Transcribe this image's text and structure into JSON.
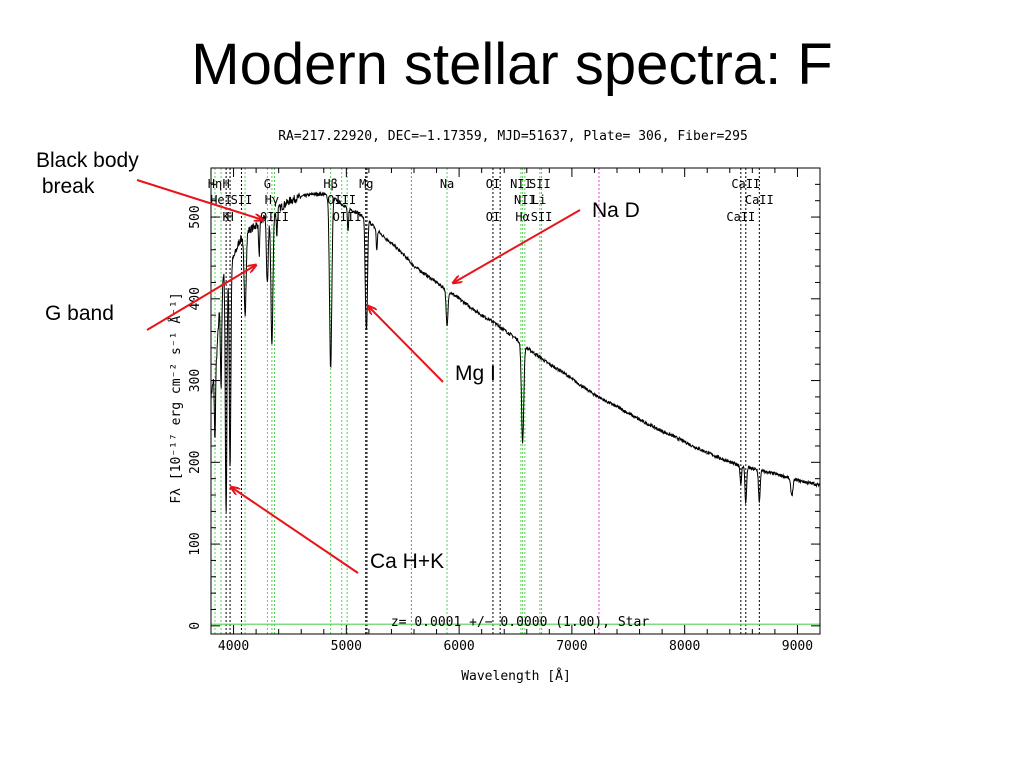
{
  "slide": {
    "title": "Modern stellar spectra: F"
  },
  "annotations": [
    {
      "label": "Black body\n break",
      "color": "#e8141b"
    },
    {
      "label": "G band",
      "color": "#e8141b"
    },
    {
      "label": "Na D",
      "color": "#e8141b"
    },
    {
      "label": "Mg I",
      "color": "#e8141b"
    },
    {
      "label": "Ca H+K",
      "color": "#e8141b"
    }
  ],
  "chart_data": {
    "type": "line",
    "title": "RA=217.22920, DEC=−1.17359, MJD=51637, Plate= 306, Fiber=295",
    "footer_text": "z= 0.0001 +/− 0.0000 (1.00), Star",
    "xlabel": "Wavelength [Å]",
    "ylabel": "Fλ [10⁻¹⁷ erg cm⁻² s⁻¹ Å⁻¹]",
    "xlim": [
      3800,
      9200
    ],
    "ylim": [
      -10,
      560
    ],
    "xticks": [
      4000,
      5000,
      6000,
      7000,
      8000,
      9000
    ],
    "yticks": [
      0,
      100,
      200,
      300,
      400,
      500
    ],
    "spectrum_color": "#000000",
    "continuum": [
      [
        3800,
        280
      ],
      [
        3850,
        330
      ],
      [
        3880,
        400
      ],
      [
        3910,
        430
      ],
      [
        3950,
        440
      ],
      [
        4000,
        450
      ],
      [
        4050,
        470
      ],
      [
        4100,
        480
      ],
      [
        4150,
        485
      ],
      [
        4200,
        490
      ],
      [
        4250,
        495
      ],
      [
        4300,
        505
      ],
      [
        4350,
        505
      ],
      [
        4400,
        510
      ],
      [
        4450,
        515
      ],
      [
        4500,
        520
      ],
      [
        4600,
        525
      ],
      [
        4700,
        528
      ],
      [
        4800,
        528
      ],
      [
        4900,
        522
      ],
      [
        5000,
        512
      ],
      [
        5100,
        505
      ],
      [
        5200,
        495
      ],
      [
        5300,
        480
      ],
      [
        5400,
        468
      ],
      [
        5500,
        455
      ],
      [
        5600,
        440
      ],
      [
        5700,
        430
      ],
      [
        5800,
        420
      ],
      [
        5900,
        410
      ],
      [
        6000,
        400
      ],
      [
        6100,
        390
      ],
      [
        6200,
        380
      ],
      [
        6300,
        372
      ],
      [
        6400,
        362
      ],
      [
        6500,
        352
      ],
      [
        6600,
        340
      ],
      [
        6700,
        330
      ],
      [
        6800,
        320
      ],
      [
        6900,
        312
      ],
      [
        7000,
        302
      ],
      [
        7100,
        292
      ],
      [
        7200,
        283
      ],
      [
        7300,
        275
      ],
      [
        7400,
        268
      ],
      [
        7500,
        260
      ],
      [
        7600,
        252
      ],
      [
        7700,
        245
      ],
      [
        7800,
        238
      ],
      [
        7900,
        232
      ],
      [
        8000,
        225
      ],
      [
        8100,
        218
      ],
      [
        8200,
        212
      ],
      [
        8300,
        206
      ],
      [
        8400,
        200
      ],
      [
        8500,
        196
      ],
      [
        8600,
        192
      ],
      [
        8700,
        189
      ],
      [
        8800,
        186
      ],
      [
        8900,
        182
      ],
      [
        9000,
        178
      ],
      [
        9100,
        175
      ],
      [
        9200,
        172
      ]
    ],
    "absorption_lines": [
      {
        "x": 3835,
        "depth": 90,
        "width": 5
      },
      {
        "x": 3889,
        "depth": 120,
        "width": 6
      },
      {
        "x": 3934,
        "depth": 300,
        "width": 7
      },
      {
        "x": 3969,
        "depth": 250,
        "width": 7
      },
      {
        "x": 4102,
        "depth": 100,
        "width": 9
      },
      {
        "x": 4227,
        "depth": 40,
        "width": 5
      },
      {
        "x": 4300,
        "depth": 90,
        "width": 8
      },
      {
        "x": 4340,
        "depth": 160,
        "width": 9
      },
      {
        "x": 4384,
        "depth": 30,
        "width": 5
      },
      {
        "x": 4861,
        "depth": 210,
        "width": 10
      },
      {
        "x": 5015,
        "depth": 30,
        "width": 5
      },
      {
        "x": 5172,
        "depth": 90,
        "width": 7
      },
      {
        "x": 5183,
        "depth": 95,
        "width": 7
      },
      {
        "x": 5270,
        "depth": 25,
        "width": 5
      },
      {
        "x": 5893,
        "depth": 45,
        "width": 8
      },
      {
        "x": 6563,
        "depth": 120,
        "width": 10
      },
      {
        "x": 8498,
        "depth": 25,
        "width": 6
      },
      {
        "x": 8542,
        "depth": 45,
        "width": 7
      },
      {
        "x": 8662,
        "depth": 40,
        "width": 7
      },
      {
        "x": 8950,
        "depth": 20,
        "width": 10
      }
    ],
    "reference_lines": [
      {
        "x": 3835,
        "color": "#55d155"
      },
      {
        "x": 3889,
        "color": "#55d155"
      },
      {
        "x": 3934,
        "color": "#000000"
      },
      {
        "x": 3969,
        "color": "#000000"
      },
      {
        "x": 4070,
        "color": "#000000"
      },
      {
        "x": 4102,
        "color": "#55d155"
      },
      {
        "x": 4300,
        "color": "#55d155"
      },
      {
        "x": 4340,
        "color": "#55d155"
      },
      {
        "x": 4363,
        "color": "#55d155"
      },
      {
        "x": 4861,
        "color": "#55d155"
      },
      {
        "x": 4959,
        "color": "#55d155"
      },
      {
        "x": 5007,
        "color": "#55d155"
      },
      {
        "x": 5172,
        "color": "#000000"
      },
      {
        "x": 5183,
        "color": "#000000"
      },
      {
        "x": 5577,
        "color": "#e040e0"
      },
      {
        "x": 5893,
        "color": "#55d155"
      },
      {
        "x": 6300,
        "color": "#000000"
      },
      {
        "x": 6364,
        "color": "#000000"
      },
      {
        "x": 6548,
        "color": "#55d155"
      },
      {
        "x": 6563,
        "color": "#55d155"
      },
      {
        "x": 6583,
        "color": "#55d155"
      },
      {
        "x": 6716,
        "color": "#55d155"
      },
      {
        "x": 6731,
        "color": "#55d155"
      },
      {
        "x": 7240,
        "color": "#e040e0"
      },
      {
        "x": 8498,
        "color": "#000000"
      },
      {
        "x": 8542,
        "color": "#000000"
      },
      {
        "x": 8662,
        "color": "#000000"
      }
    ],
    "line_labels": [
      {
        "text": "Hη",
        "x": 3835,
        "row": 0
      },
      {
        "text": "H",
        "x": 3934,
        "row": 0
      },
      {
        "text": "HeI",
        "x": 3889,
        "row": 1
      },
      {
        "text": "SII",
        "x": 4070,
        "row": 1
      },
      {
        "text": "K",
        "x": 3934,
        "row": 2
      },
      {
        "text": "H",
        "x": 3969,
        "row": 2
      },
      {
        "text": "G",
        "x": 4300,
        "row": 0
      },
      {
        "text": "Hγ",
        "x": 4340,
        "row": 1
      },
      {
        "text": "OIII",
        "x": 4363,
        "row": 2
      },
      {
        "text": "Hβ",
        "x": 4861,
        "row": 0
      },
      {
        "text": "OIII",
        "x": 4959,
        "row": 1
      },
      {
        "text": "OIII",
        "x": 5007,
        "row": 2
      },
      {
        "text": "Mg",
        "x": 5177,
        "row": 0
      },
      {
        "text": "Na",
        "x": 5893,
        "row": 0
      },
      {
        "text": "OI",
        "x": 6300,
        "row": 0
      },
      {
        "text": "OI",
        "x": 6300,
        "row": 2
      },
      {
        "text": "NII",
        "x": 6548,
        "row": 0
      },
      {
        "text": "SII",
        "x": 6716,
        "row": 0
      },
      {
        "text": "NII",
        "x": 6583,
        "row": 1
      },
      {
        "text": "Li",
        "x": 6708,
        "row": 1
      },
      {
        "text": "Hα",
        "x": 6563,
        "row": 2
      },
      {
        "text": "SII",
        "x": 6731,
        "row": 2
      },
      {
        "text": "CaII",
        "x": 8542,
        "row": 0
      },
      {
        "text": "CaII",
        "x": 8662,
        "row": 1
      },
      {
        "text": "CaII",
        "x": 8498,
        "row": 2
      }
    ]
  }
}
